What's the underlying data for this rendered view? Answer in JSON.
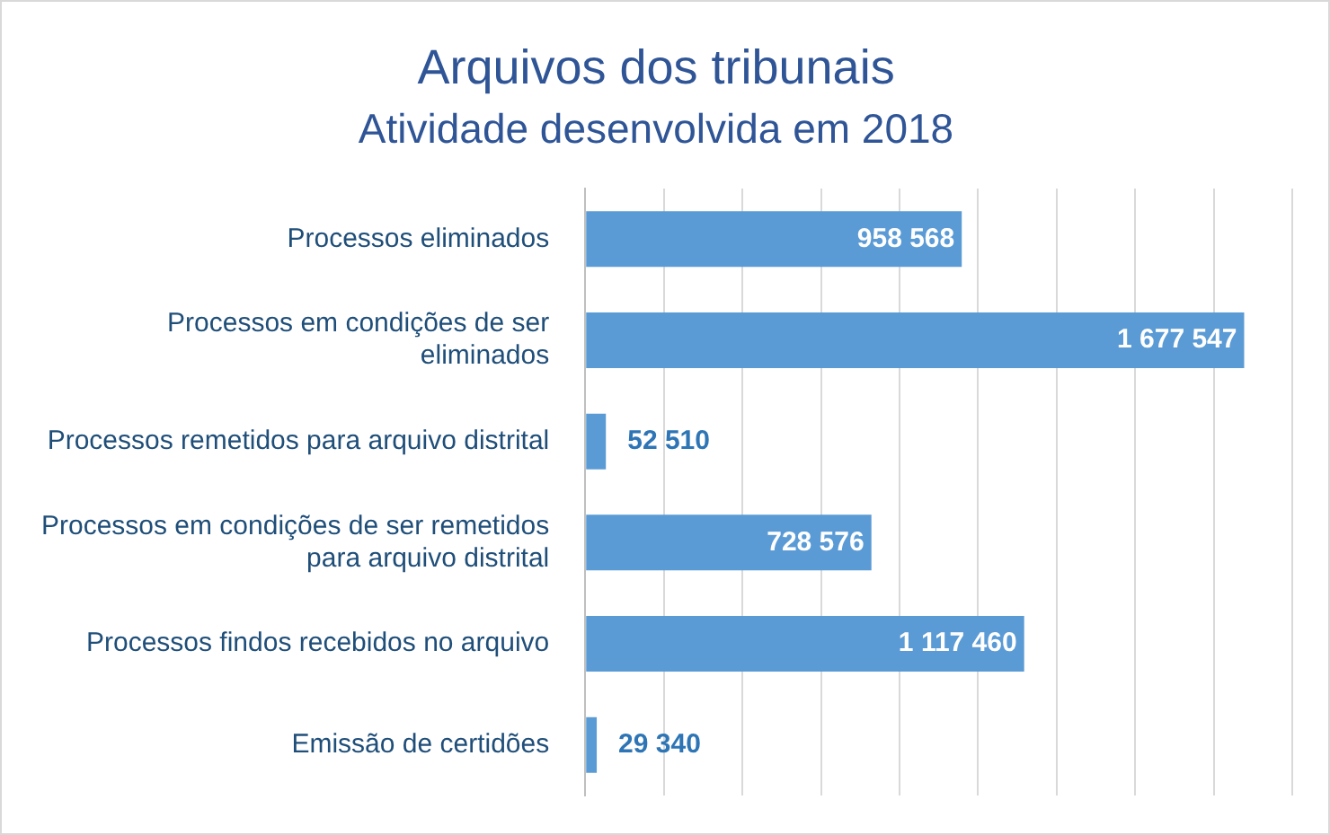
{
  "chart_data": {
    "type": "bar",
    "orientation": "horizontal",
    "title": "Arquivos dos tribunais",
    "subtitle": "Atividade desenvolvida em 2018",
    "categories": [
      "Processos eliminados",
      "Processos em condições de ser eliminados",
      "Processos remetidos para arquivo distrital",
      "Processos em condições de ser remetidos para arquivo distrital",
      "Processos findos recebidos no arquivo",
      "Emissão de certidões"
    ],
    "values": [
      958568,
      1677547,
      52510,
      728576,
      1117460,
      29340
    ],
    "value_labels": [
      "958 568",
      "1 677 547",
      "52 510",
      "728 576",
      "1 117 460",
      "29 340"
    ],
    "color": "#5b9bd5",
    "xlim": [
      0,
      1800000
    ],
    "xticks": [
      {
        "value": 0,
        "label": null
      },
      {
        "value": 200000,
        "label": null
      },
      {
        "value": 400000,
        "label": null
      },
      {
        "value": 600000,
        "label": null
      },
      {
        "value": 800000,
        "label": null
      },
      {
        "value": 1000000,
        "label": null
      },
      {
        "value": 1200000,
        "label": null
      },
      {
        "value": 1400000,
        "label": null
      },
      {
        "value": 1600000,
        "label": null
      },
      {
        "value": 1800000,
        "label": null
      }
    ],
    "grid": "x",
    "tick_labels": "y",
    "legend": false
  }
}
